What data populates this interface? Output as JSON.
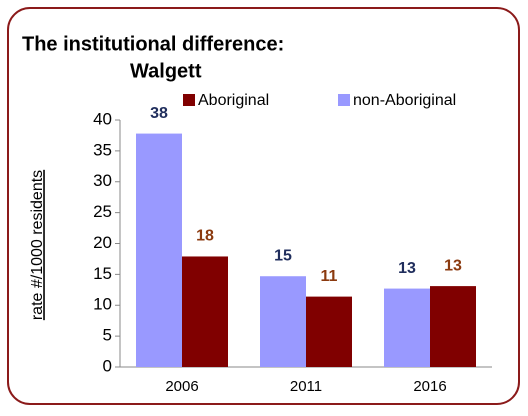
{
  "chart_data": {
    "type": "bar",
    "title": "The institutional difference:",
    "subtitle": "Walgett",
    "y_label": "rate #/1000 residents",
    "categories": [
      "2006",
      "2011",
      "2016"
    ],
    "series": [
      {
        "name": "Aboriginal",
        "color": "#800000",
        "label_color": "#8b3a0f",
        "values": [
          17.9,
          11.4,
          13.1
        ],
        "value_labels": [
          "18",
          "11",
          "13"
        ]
      },
      {
        "name": "non-Aboriginal",
        "color": "#9999ff",
        "label_color": "#1f2d5c",
        "values": [
          37.8,
          14.7,
          12.7
        ],
        "value_labels": [
          "38",
          "15",
          "13"
        ]
      }
    ],
    "ylim": [
      0,
      40
    ],
    "yticks": [
      0,
      5,
      10,
      15,
      20,
      25,
      30,
      35,
      40
    ],
    "grid": false
  }
}
